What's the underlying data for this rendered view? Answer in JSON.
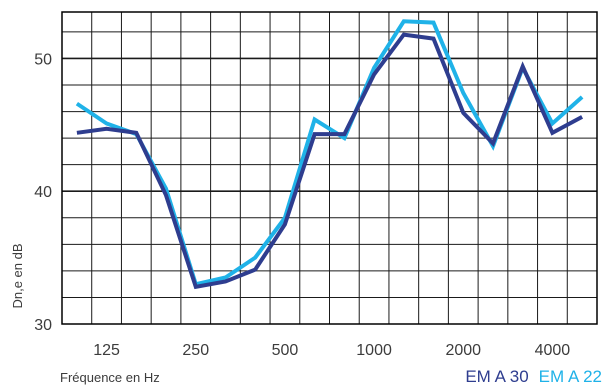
{
  "chart_data": {
    "type": "line",
    "xlabel": "Fréquence en Hz",
    "ylabel": "Dn,e en dB",
    "ylim": [
      30,
      53.5
    ],
    "y_ticks": [
      "30",
      "40",
      "50"
    ],
    "x_tick_labels": [
      "125",
      "250",
      "500",
      "1000",
      "2000",
      "4000"
    ],
    "x": [
      "100",
      "125",
      "160",
      "200",
      "250",
      "315",
      "400",
      "500",
      "630",
      "800",
      "1000",
      "1250",
      "1600",
      "2000",
      "2500",
      "3150",
      "4000",
      "5000"
    ],
    "grid": true,
    "legend_position": "bottom-right",
    "series": [
      {
        "name": "EM A 30",
        "color": "#2e3d8f",
        "values": [
          44.4,
          44.7,
          44.4,
          39.7,
          32.8,
          33.2,
          34.1,
          37.5,
          44.3,
          44.3,
          48.8,
          51.8,
          51.5,
          45.9,
          43.6,
          49.4,
          44.4,
          45.6
        ]
      },
      {
        "name": "EM A 22",
        "color": "#1fb2e8",
        "values": [
          46.6,
          45.1,
          44.3,
          40.2,
          33.0,
          33.5,
          35.0,
          38.0,
          45.4,
          44.0,
          49.3,
          52.8,
          52.7,
          47.4,
          43.4,
          49.3,
          45.1,
          47.1
        ]
      }
    ]
  }
}
